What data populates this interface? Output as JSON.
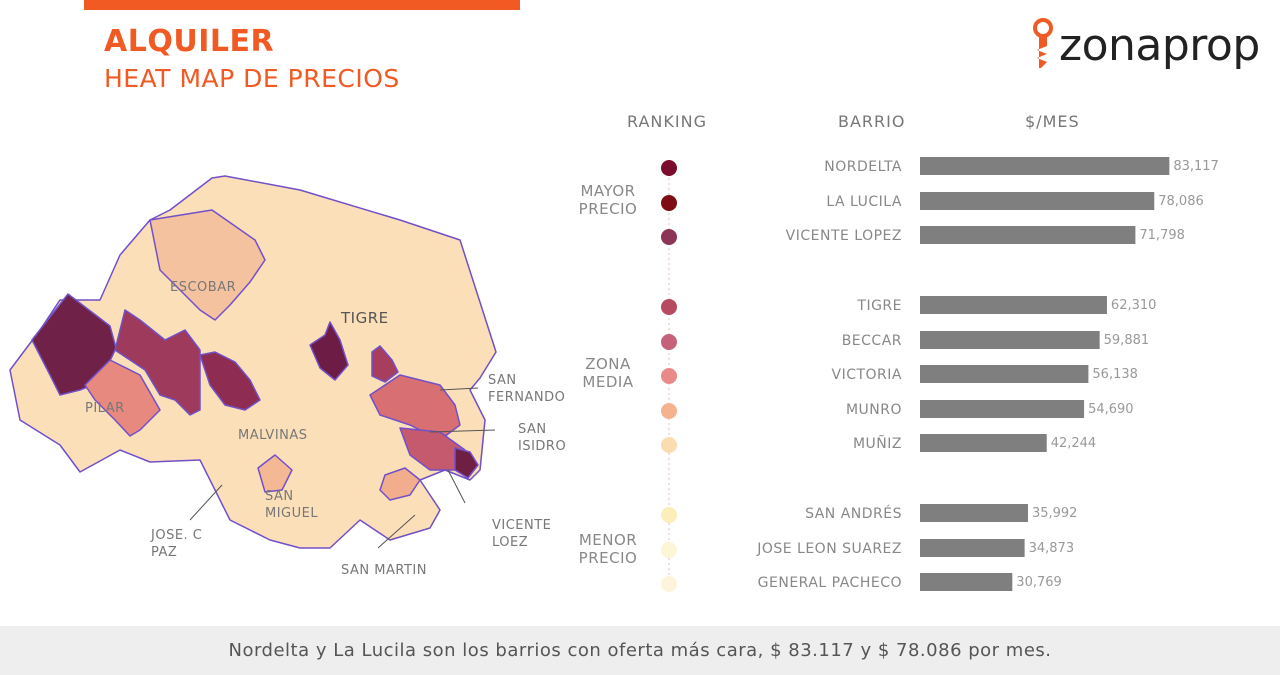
{
  "header": {
    "title": "ALQUILER",
    "subtitle": "HEAT MAP DE PRECIOS",
    "accent_color": "#f15a22"
  },
  "logo": {
    "text": "zonaprop",
    "icon": "key-icon",
    "icon_color": "#f15a22"
  },
  "columns": {
    "ranking": "RANKING",
    "barrio": "BARRIO",
    "precio": "$/MES"
  },
  "groups": {
    "mayor": [
      "MAYOR",
      "PRECIO"
    ],
    "media": [
      "ZONA",
      "MEDIA"
    ],
    "menor": [
      "MENOR",
      "PRECIO"
    ]
  },
  "map_labels": {
    "escobar": "ESCOBAR",
    "tigre": "TIGRE",
    "pilar": "PILAR",
    "malvinas": "MALVINAS",
    "san_fernando": [
      "SAN",
      "FERNANDO"
    ],
    "san_isidro": [
      "SAN",
      "ISIDRO"
    ],
    "san_miguel": [
      "SAN",
      "MIGUEL"
    ],
    "jose_c_paz": [
      "JOSE. C",
      "PAZ"
    ],
    "vicente_lopez": [
      "VICENTE",
      "LOEZ"
    ],
    "san_martin": "SAN MARTIN"
  },
  "chart_data": {
    "type": "bar",
    "orientation": "horizontal",
    "categories": [
      "NORDELTA",
      "LA LUCILA",
      "VICENTE LOPEZ",
      "TIGRE",
      "BECCAR",
      "VICTORIA",
      "MUNRO",
      "MUÑIZ",
      "SAN ANDRÉS",
      "JOSE LEON SUAREZ",
      "GENERAL PACHECO"
    ],
    "values": [
      83117,
      78086,
      71798,
      62310,
      59881,
      56138,
      54690,
      42244,
      35992,
      34873,
      30769
    ],
    "value_labels": [
      "83,117",
      "78,086",
      "71,798",
      "62,310",
      "59,881",
      "56,138",
      "54,690",
      "42,244",
      "35,992",
      "34,873",
      "30,769"
    ],
    "ranking_colors": [
      "#7a0d2e",
      "#7e0c15",
      "#8c3556",
      "#b64a60",
      "#c5627a",
      "#e8898a",
      "#f5b28e",
      "#fadcb0",
      "#fbeeb9",
      "#fcf5d6",
      "#fcf5da"
    ],
    "bar_color": "#7f7f7f",
    "xlim": [
      0,
      100000
    ]
  },
  "footer": {
    "text": "Nordelta y La Lucila son los barrios con oferta más cara, $ 83.117 y $ 78.086 por mes."
  }
}
